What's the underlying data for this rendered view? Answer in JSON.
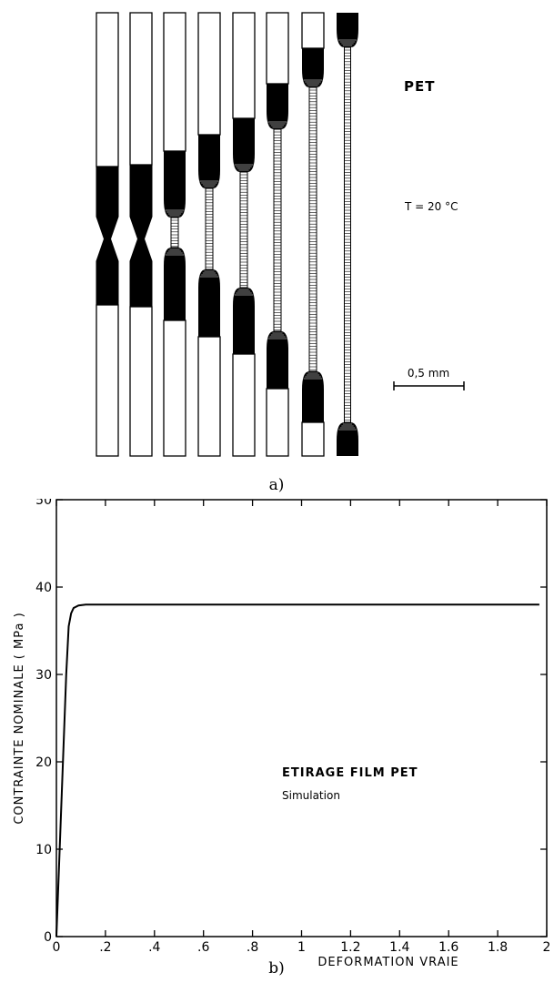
{
  "panel_a": {
    "label": "a)",
    "material": "PET",
    "temperature": "T = 20 °C",
    "scale_label": "0,5 mm",
    "specimen_count": 8
  },
  "panel_b": {
    "label": "b)",
    "annotation_title": "ETIRAGE FILM PET",
    "annotation_subtitle": "Simulation"
  },
  "chart_data": {
    "type": "line",
    "title": "",
    "xlabel": "DEFORMATION VRAIE",
    "ylabel": "CONTRAINTE NOMINALE   ( MPa )",
    "xlim": [
      0,
      2
    ],
    "ylim": [
      0,
      50
    ],
    "x_ticks": [
      0,
      0.2,
      0.4,
      0.6,
      0.8,
      1,
      1.2,
      1.4,
      1.6,
      1.8,
      2
    ],
    "x_tick_labels": [
      "0",
      ".2",
      ".4",
      ".6",
      ".8",
      "1",
      "1.2",
      "1.4",
      "1.6",
      "1.8",
      "2"
    ],
    "y_ticks": [
      0,
      10,
      20,
      30,
      40,
      50
    ],
    "y_tick_labels": [
      "0",
      "10",
      "20",
      "30",
      "40",
      "50"
    ],
    "grid": false,
    "series": [
      {
        "x": [
          0,
          0.02,
          0.04,
          0.05,
          0.06,
          0.07,
          0.09,
          0.12,
          0.2,
          1.0,
          1.97
        ],
        "y": [
          0,
          15,
          30,
          35.5,
          37,
          37.6,
          37.9,
          38,
          38,
          38,
          38
        ]
      }
    ]
  }
}
